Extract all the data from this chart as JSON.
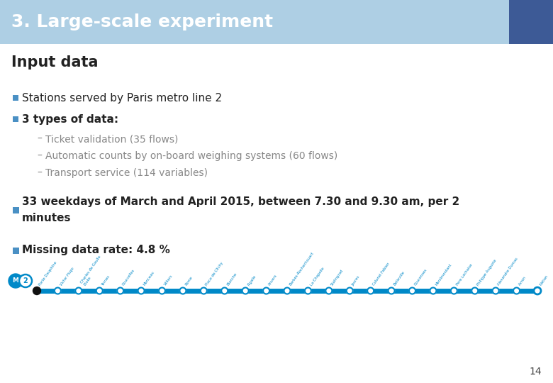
{
  "title": "3. Large-scale experiment",
  "title_bg_color": "#aecfe4",
  "title_text_color": "#ffffff",
  "title_square_color": "#3d5a96",
  "section_heading": "Input data",
  "bullet_color": "#4a90c4",
  "bullet1": "Stations served by Paris metro line 2",
  "bullet2": "3 types of data:",
  "sub_bullets": [
    "Ticket validation (35 flows)",
    "Automatic counts by on-board weighing systems (60 flows)",
    "Transport service (114 variables)"
  ],
  "bullet3": "33 weekdays of March and April 2015, between 7.30 and 9.30 am, per 2\nminutes",
  "bullet4": "Missing data rate: 4.8 %",
  "page_number": "14",
  "bg_color": "#ffffff",
  "metro_line_color": "#0089c8",
  "sub_bullet_color": "#888888",
  "text_color": "#222222"
}
